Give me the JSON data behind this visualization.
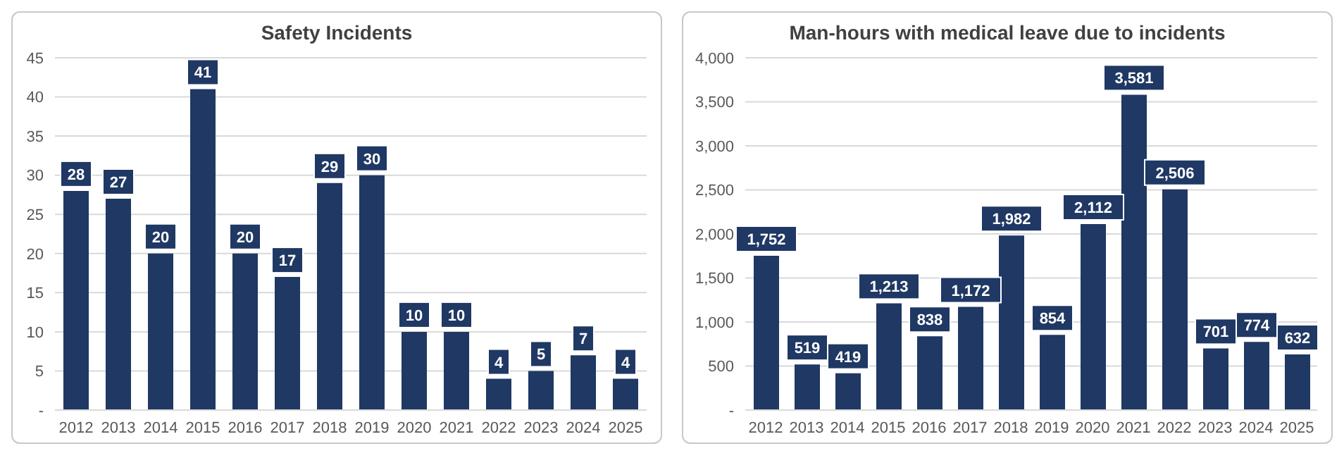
{
  "chart_data": [
    {
      "type": "bar",
      "title": "Safety Incidents",
      "categories": [
        "2012",
        "2013",
        "2014",
        "2015",
        "2016",
        "2017",
        "2018",
        "2019",
        "2020",
        "2021",
        "2022",
        "2023",
        "2024",
        "2025"
      ],
      "values": [
        28,
        27,
        20,
        41,
        20,
        17,
        29,
        30,
        10,
        10,
        4,
        5,
        7,
        4
      ],
      "color": "#1f3864",
      "data_labels": true,
      "ylim": [
        0,
        45
      ],
      "yticks": [
        {
          "value": 0,
          "label": "-"
        },
        5,
        10,
        15,
        20,
        25,
        30,
        35,
        40,
        45
      ],
      "grid": "y"
    },
    {
      "type": "bar",
      "title": "Man-hours with medical leave due to incidents",
      "categories": [
        "2012",
        "2013",
        "2014",
        "2015",
        "2016",
        "2017",
        "2018",
        "2019",
        "2020",
        "2021",
        "2022",
        "2023",
        "2024",
        "2025"
      ],
      "values": [
        1752,
        519,
        419,
        1213,
        838,
        1172,
        1982,
        854,
        2112,
        3581,
        2506,
        701,
        774,
        632
      ],
      "color": "#1f3864",
      "value_labels": [
        "1,752",
        "519",
        "419",
        "1,213",
        "838",
        "1,172",
        "1,982",
        "854",
        "2,112",
        "3,581",
        "2,506",
        "701",
        "774",
        "632"
      ],
      "ylim": [
        0,
        4000
      ],
      "yticks": [
        {
          "value": 0,
          "label": "-"
        },
        {
          "value": 500,
          "label": "500"
        },
        {
          "value": 1000,
          "label": "1,000"
        },
        {
          "value": 1500,
          "label": "1,500"
        },
        {
          "value": 2000,
          "label": "2,000"
        },
        {
          "value": 2500,
          "label": "2,500"
        },
        {
          "value": 3000,
          "label": "3,000"
        },
        {
          "value": 3500,
          "label": "3,500"
        },
        {
          "value": 4000,
          "label": "4,000"
        }
      ],
      "grid": "y"
    }
  ]
}
